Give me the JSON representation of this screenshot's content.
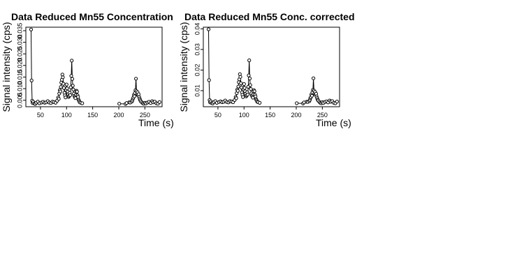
{
  "chart_data": [
    {
      "type": "line",
      "title": "Data Reduced Mn55 Concentration",
      "xlabel": "Time (s)",
      "ylabel": "Signal intensity (cps)",
      "xlim": [
        22,
        283
      ],
      "ylim": [
        0.0022,
        0.0365
      ],
      "x_ticks": [
        50,
        100,
        150,
        200,
        250
      ],
      "y_ticks": [
        0.005,
        0.01,
        0.015,
        0.02,
        0.025,
        0.03,
        0.035
      ],
      "x_tick_labels": [
        "50",
        "100",
        "150",
        "200",
        "250"
      ],
      "y_tick_labels": [
        "0.005",
        "0.010",
        "0.015",
        "0.020",
        "0.025",
        "0.030",
        "0.035"
      ],
      "grid": false,
      "legend": "none",
      "colors": {
        "line": "#000000",
        "point_fill": "#ffffff",
        "point_stroke": "#000000"
      },
      "segments": [
        {
          "x": [
            32,
            33,
            34,
            35,
            36,
            38,
            40,
            42,
            45,
            48,
            52,
            55,
            58,
            61,
            64,
            67,
            70,
            73,
            76,
            79,
            82,
            84,
            85,
            86,
            87,
            88,
            89,
            90,
            91,
            92,
            93,
            94,
            95,
            96,
            97,
            98,
            99,
            100,
            101,
            102,
            103,
            104,
            105,
            106,
            107,
            108,
            109,
            110,
            111,
            112,
            113,
            114,
            115,
            116,
            117,
            118,
            119,
            120,
            121,
            122,
            123,
            124,
            125,
            127,
            130
          ],
          "y": [
            0.0355,
            0.0135,
            0.0048,
            0.0038,
            0.0043,
            0.0036,
            0.0034,
            0.0039,
            0.0044,
            0.0037,
            0.004,
            0.0043,
            0.0039,
            0.0041,
            0.0046,
            0.004,
            0.0038,
            0.0044,
            0.0042,
            0.0039,
            0.0048,
            0.0062,
            0.0056,
            0.0079,
            0.0094,
            0.0088,
            0.0107,
            0.0126,
            0.0138,
            0.0161,
            0.0149,
            0.0121,
            0.0103,
            0.0082,
            0.0071,
            0.0062,
            0.0094,
            0.0118,
            0.0101,
            0.0087,
            0.0076,
            0.0064,
            0.0069,
            0.0082,
            0.0072,
            0.0106,
            0.0155,
            0.0221,
            0.0142,
            0.0113,
            0.0096,
            0.0078,
            0.0069,
            0.0063,
            0.0059,
            0.0073,
            0.0091,
            0.0087,
            0.0071,
            0.0064,
            0.0052,
            0.0047,
            0.0042,
            0.0039,
            0.0037
          ]
        },
        {
          "x": [
            201,
            213,
            215,
            220,
            222
          ],
          "y": [
            0.0035,
            0.0034,
            0.0038,
            0.0041,
            0.004
          ]
        },
        {
          "x": [
            225,
            226,
            227,
            228,
            229,
            230,
            231,
            232,
            233,
            234,
            235,
            236,
            237,
            238,
            239,
            240,
            241,
            242,
            244,
            246,
            248,
            250,
            252,
            255,
            258,
            261,
            264,
            266,
            269,
            272,
            275,
            278
          ],
          "y": [
            0.0044,
            0.0049,
            0.0056,
            0.0061,
            0.0073,
            0.0067,
            0.0081,
            0.0093,
            0.0143,
            0.0089,
            0.0077,
            0.0084,
            0.0071,
            0.0076,
            0.0064,
            0.0057,
            0.0051,
            0.0046,
            0.0041,
            0.0037,
            0.0035,
            0.0039,
            0.0036,
            0.004,
            0.0043,
            0.0038,
            0.0046,
            0.0041,
            0.0044,
            0.0037,
            0.0035,
            0.0042
          ]
        }
      ]
    },
    {
      "type": "line",
      "title": "Data Reduced Mn55 Conc. corrected",
      "xlabel": "Time (s)",
      "ylabel": "Signal intensity (cps)",
      "xlim": [
        22,
        283
      ],
      "ylim": [
        0.0022,
        0.0408
      ],
      "x_ticks": [
        50,
        100,
        150,
        200,
        250
      ],
      "y_ticks": [
        0.01,
        0.02,
        0.03,
        0.04
      ],
      "x_tick_labels": [
        "50",
        "100",
        "150",
        "200",
        "250"
      ],
      "y_tick_labels": [
        "0.01",
        "0.02",
        "0.03",
        "0.04"
      ],
      "grid": false,
      "legend": "none",
      "colors": {
        "line": "#000000",
        "point_fill": "#ffffff",
        "point_stroke": "#000000"
      },
      "segments": [
        {
          "x": [
            32,
            33,
            34,
            35,
            36,
            38,
            40,
            42,
            45,
            48,
            52,
            55,
            58,
            61,
            64,
            67,
            70,
            73,
            76,
            79,
            82,
            84,
            85,
            86,
            87,
            88,
            89,
            90,
            91,
            92,
            93,
            94,
            95,
            96,
            97,
            98,
            99,
            100,
            101,
            102,
            103,
            104,
            105,
            106,
            107,
            108,
            109,
            110,
            111,
            112,
            113,
            114,
            115,
            116,
            117,
            118,
            119,
            120,
            121,
            122,
            123,
            124,
            125,
            127,
            130
          ],
          "y": [
            0.0398,
            0.0151,
            0.0054,
            0.0043,
            0.0048,
            0.004,
            0.0038,
            0.0044,
            0.0049,
            0.0041,
            0.0045,
            0.0048,
            0.0044,
            0.0046,
            0.0052,
            0.0045,
            0.0043,
            0.0049,
            0.0047,
            0.0044,
            0.0054,
            0.0069,
            0.0063,
            0.0088,
            0.0105,
            0.0099,
            0.012,
            0.0141,
            0.0155,
            0.018,
            0.0167,
            0.0136,
            0.0115,
            0.0092,
            0.008,
            0.0069,
            0.0105,
            0.0132,
            0.0113,
            0.0097,
            0.0085,
            0.0072,
            0.0077,
            0.0092,
            0.0081,
            0.0119,
            0.0174,
            0.0247,
            0.0159,
            0.0127,
            0.0108,
            0.0087,
            0.0077,
            0.0071,
            0.0066,
            0.0082,
            0.0102,
            0.0097,
            0.008,
            0.0072,
            0.0058,
            0.0053,
            0.0047,
            0.0044,
            0.0041
          ]
        },
        {
          "x": [
            201,
            213,
            215,
            220,
            222
          ],
          "y": [
            0.0039,
            0.0038,
            0.0043,
            0.0046,
            0.0045
          ]
        },
        {
          "x": [
            225,
            226,
            227,
            228,
            229,
            230,
            231,
            232,
            233,
            234,
            235,
            236,
            237,
            238,
            239,
            240,
            241,
            242,
            244,
            246,
            248,
            250,
            252,
            255,
            258,
            261,
            264,
            266,
            269,
            272,
            275,
            278
          ],
          "y": [
            0.0049,
            0.0055,
            0.0063,
            0.0068,
            0.0082,
            0.0075,
            0.0091,
            0.0104,
            0.016,
            0.01,
            0.0086,
            0.0094,
            0.008,
            0.0085,
            0.0072,
            0.0064,
            0.0057,
            0.0052,
            0.0046,
            0.0041,
            0.0039,
            0.0044,
            0.004,
            0.0045,
            0.0048,
            0.0043,
            0.0052,
            0.0046,
            0.0049,
            0.0041,
            0.0039,
            0.0047
          ]
        }
      ]
    }
  ]
}
